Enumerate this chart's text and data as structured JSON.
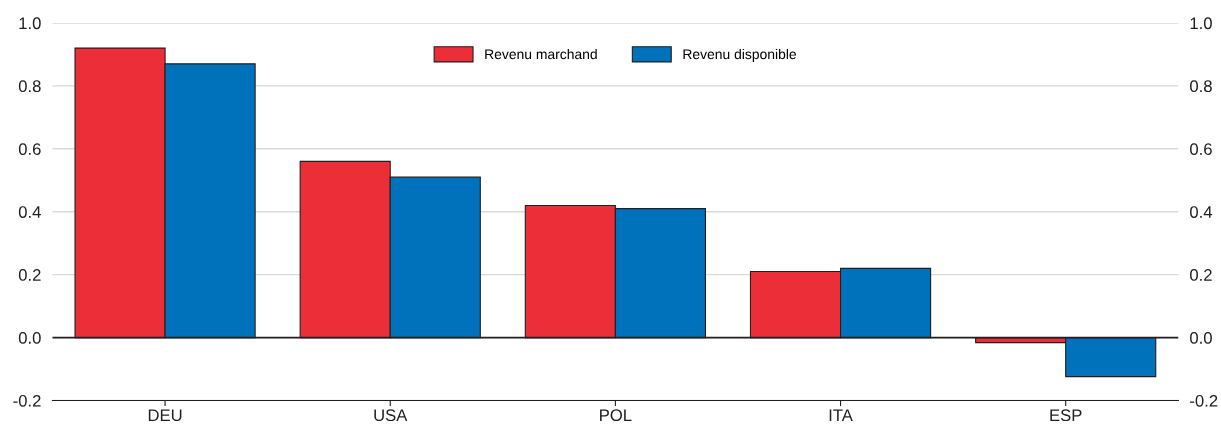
{
  "chart_data": {
    "type": "bar",
    "categories": [
      "DEU",
      "USA",
      "POL",
      "ITA",
      "ESP"
    ],
    "series": [
      {
        "name": "Revenu marchand",
        "color": "#ec2e38",
        "values": [
          0.92,
          0.56,
          0.42,
          0.21,
          -0.016
        ]
      },
      {
        "name": "Revenu disponible",
        "color": "#0072bb",
        "values": [
          0.87,
          0.51,
          0.41,
          0.22,
          -0.124
        ]
      }
    ],
    "ylim": [
      -0.2,
      1.0
    ],
    "yticks": [
      {
        "value": -0.2,
        "label": "-0.2"
      },
      {
        "value": 0,
        "label": "0.0"
      },
      {
        "value": 0.2,
        "label": "0.2"
      },
      {
        "value": 0.4,
        "label": "0.4"
      },
      {
        "value": 0.6,
        "label": "0.6"
      },
      {
        "value": 0.8,
        "label": "0.8"
      },
      {
        "value": 1.0,
        "label": "1.0"
      }
    ],
    "y2lim": [
      -0.2,
      1.0
    ],
    "y2ticks": [
      {
        "value": -0.2,
        "label": "-0.2"
      },
      {
        "value": 0,
        "label": "0.0"
      },
      {
        "value": 0.2,
        "label": "0.2"
      },
      {
        "value": 0.4,
        "label": "0.4"
      },
      {
        "value": 0.6,
        "label": "0.6"
      },
      {
        "value": 0.8,
        "label": "0.8"
      },
      {
        "value": 1.0,
        "label": "1.0"
      }
    ],
    "ref_lines": [
      {
        "axis": "y",
        "value": 0,
        "label": null,
        "color": "#231f20"
      }
    ],
    "grid": "y",
    "legend": "top"
  }
}
